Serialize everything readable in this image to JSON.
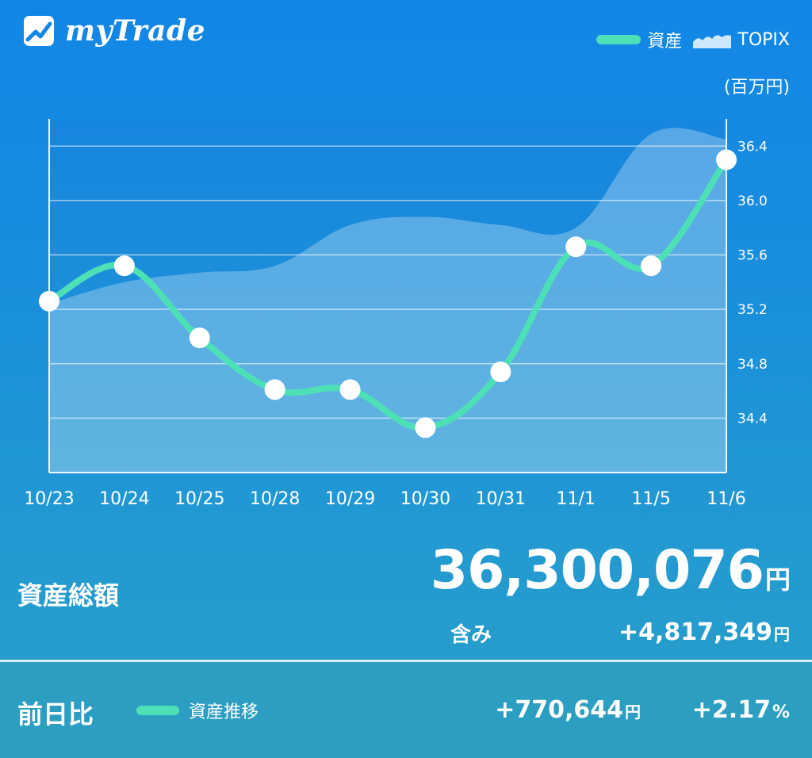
{
  "app": {
    "name": "myTrade",
    "logo_icon": "chart-logo-icon"
  },
  "legend": {
    "asset_label": "資産",
    "asset_color": "#4de0b7",
    "topix_label": "TOPIX",
    "topix_icon": "area-chart-icon"
  },
  "chart_data": {
    "type": "line",
    "unit": "(百万円)",
    "categories": [
      "10/23",
      "10/24",
      "10/25",
      "10/28",
      "10/29",
      "10/30",
      "10/31",
      "11/1",
      "11/5",
      "11/6"
    ],
    "series": [
      {
        "name": "資産",
        "values": [
          35.26,
          35.52,
          34.99,
          34.61,
          34.61,
          34.33,
          34.74,
          35.66,
          35.52,
          36.3
        ],
        "color": "#4de0b7"
      }
    ],
    "area": {
      "name": "TOPIX",
      "values": [
        35.24,
        35.4,
        35.47,
        35.52,
        35.82,
        35.88,
        35.82,
        35.8,
        36.49,
        36.45
      ],
      "color": "#ffffff"
    },
    "y_ticks": [
      "34.4",
      "34.8",
      "35.2",
      "35.6",
      "36.0",
      "36.4"
    ],
    "ylim": [
      34.0,
      36.6
    ],
    "grid": true
  },
  "summary": {
    "total_label": "資産総額",
    "total_value": "36,300,076",
    "yen": "円",
    "included_label": "含み",
    "included_value": "+4,817,349"
  },
  "footer": {
    "diff_label": "前日比",
    "legend_label": "資産推移",
    "diff_amount": "+770,644",
    "diff_pct": "+2.17",
    "pct_sign": "%"
  }
}
